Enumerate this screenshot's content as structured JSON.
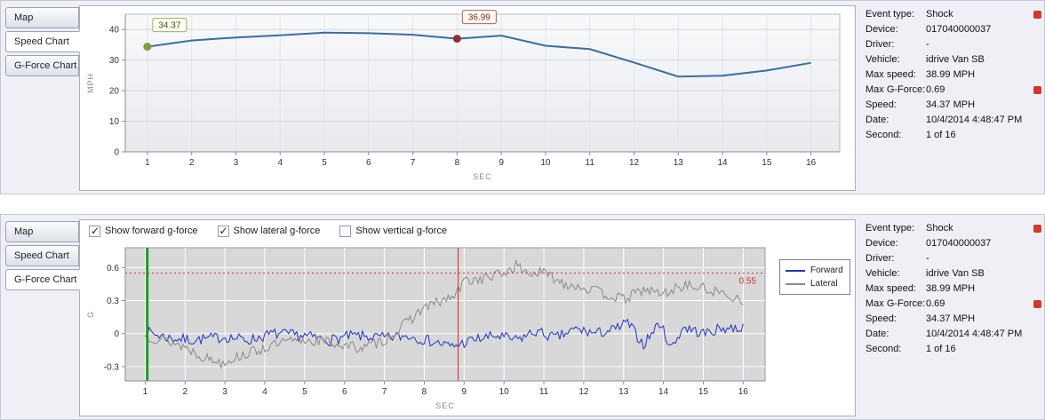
{
  "tabs": {
    "map": "Map",
    "speed": "Speed Chart",
    "gforce": "G-Force Chart"
  },
  "info": {
    "rows": [
      {
        "label": "Event type:",
        "value": "Shock"
      },
      {
        "label": "Device:",
        "value": "017040000037"
      },
      {
        "label": "Driver:",
        "value": "-"
      },
      {
        "label": "Vehicle:",
        "value": "idrive Van SB"
      },
      {
        "label": "Max speed:",
        "value": "38.99 MPH"
      },
      {
        "label": "Max G-Force:",
        "value": "0.69"
      },
      {
        "label": "Speed:",
        "value": "34.37 MPH"
      },
      {
        "label": "Date:",
        "value": "10/4/2014 4:48:47 PM"
      },
      {
        "label": "Second:",
        "value": "1 of 16"
      }
    ]
  },
  "gforce_controls": [
    {
      "label": "Show forward g-force",
      "checked": true
    },
    {
      "label": "Show lateral g-force",
      "checked": true
    },
    {
      "label": "Show vertical g-force",
      "checked": false
    }
  ],
  "chart_data": [
    {
      "type": "line",
      "title": "Speed Chart",
      "xlabel": "SEC",
      "ylabel": "MPH",
      "xlim": [
        0.5,
        16.65
      ],
      "ylim": [
        0,
        45
      ],
      "xticks": [
        1,
        2,
        3,
        4,
        5,
        6,
        7,
        8,
        9,
        10,
        11,
        12,
        13,
        14,
        15,
        16
      ],
      "yticks": [
        0,
        10,
        20,
        30,
        40
      ],
      "series": [
        {
          "name": "Speed",
          "color": "#3a6da6",
          "width": 2,
          "x": [
            1,
            2,
            3,
            4,
            5,
            6,
            7,
            8,
            9,
            10,
            11,
            12,
            13,
            14,
            15,
            16
          ],
          "values": [
            34.37,
            36.4,
            37.4,
            38.1,
            38.99,
            38.8,
            38.3,
            36.99,
            38.0,
            34.7,
            33.6,
            29.2,
            24.6,
            24.9,
            26.6,
            29.1
          ]
        }
      ],
      "annotations": [
        {
          "x": 1,
          "y": 34.37,
          "label": "34.37",
          "dot": "#7e9b3d",
          "box": "#a3ad6a",
          "text": "#4b5320"
        },
        {
          "x": 8,
          "y": 36.99,
          "label": "36.99",
          "dot": "#922f2f",
          "box": "#b06060",
          "text": "#8b2525"
        }
      ]
    },
    {
      "type": "line",
      "title": "G-Force Chart",
      "xlabel": "SEC",
      "ylabel": "G",
      "xlim": [
        0.5,
        16.55
      ],
      "ylim": [
        -0.43,
        0.78
      ],
      "xticks": [
        1,
        2,
        3,
        4,
        5,
        6,
        7,
        8,
        9,
        10,
        11,
        12,
        13,
        14,
        15,
        16
      ],
      "yticks": [
        -0.3,
        0,
        0.3,
        0.6
      ],
      "threshold": {
        "y": 0.55,
        "label": "0.55",
        "color": "#cf3333"
      },
      "event_lines": [
        {
          "x": 1.05,
          "color": "#1f9b26",
          "width": 3
        },
        {
          "x": 8.85,
          "color": "#cf2b20",
          "width": 1
        }
      ],
      "legend": {
        "entries": [
          {
            "label": "Forward",
            "color": "#2333c0"
          },
          {
            "label": "Lateral",
            "color": "#8a8a8a"
          }
        ]
      },
      "series": [
        {
          "name": "Forward",
          "color": "#2333c0",
          "width": 1,
          "noise": 0.05,
          "seed": 7,
          "keypoints": [
            [
              1,
              0.02
            ],
            [
              1.6,
              -0.04
            ],
            [
              2.2,
              -0.06
            ],
            [
              3,
              -0.03
            ],
            [
              3.6,
              -0.06
            ],
            [
              4.2,
              0
            ],
            [
              5,
              -0.02
            ],
            [
              5.6,
              -0.06
            ],
            [
              6.2,
              -0.02
            ],
            [
              7,
              -0.04
            ],
            [
              7.6,
              -0.02
            ],
            [
              8.3,
              -0.08
            ],
            [
              8.7,
              -0.12
            ],
            [
              9.2,
              -0.06
            ],
            [
              9.8,
              -0.02
            ],
            [
              10.3,
              -0.06
            ],
            [
              10.8,
              0.02
            ],
            [
              11.3,
              -0.04
            ],
            [
              11.8,
              0.04
            ],
            [
              12.3,
              0
            ],
            [
              12.8,
              0.04
            ],
            [
              13.1,
              0.1
            ],
            [
              13.5,
              -0.1
            ],
            [
              13.9,
              0.1
            ],
            [
              14.2,
              -0.13
            ],
            [
              14.5,
              0.06
            ],
            [
              15,
              0
            ],
            [
              15.5,
              0.05
            ],
            [
              16,
              0.05
            ]
          ]
        },
        {
          "name": "Lateral",
          "color": "#8a8a8a",
          "width": 1,
          "noise": 0.05,
          "seed": 13,
          "keypoints": [
            [
              1,
              -0.02
            ],
            [
              1.5,
              -0.06
            ],
            [
              2,
              -0.12
            ],
            [
              2.5,
              -0.22
            ],
            [
              2.9,
              -0.26
            ],
            [
              3.4,
              -0.2
            ],
            [
              4,
              -0.13
            ],
            [
              4.5,
              -0.08
            ],
            [
              5,
              -0.06
            ],
            [
              5.5,
              -0.07
            ],
            [
              6,
              -0.11
            ],
            [
              6.5,
              -0.13
            ],
            [
              7,
              -0.06
            ],
            [
              7.5,
              0.08
            ],
            [
              8,
              0.24
            ],
            [
              8.5,
              0.3
            ],
            [
              8.8,
              0.35
            ],
            [
              9,
              0.48
            ],
            [
              9.5,
              0.5
            ],
            [
              10,
              0.55
            ],
            [
              10.3,
              0.62
            ],
            [
              10.6,
              0.55
            ],
            [
              11,
              0.55
            ],
            [
              11.5,
              0.46
            ],
            [
              12,
              0.42
            ],
            [
              12.5,
              0.36
            ],
            [
              13,
              0.31
            ],
            [
              13.5,
              0.4
            ],
            [
              14,
              0.36
            ],
            [
              14.5,
              0.44
            ],
            [
              15,
              0.41
            ],
            [
              15.5,
              0.36
            ],
            [
              16,
              0.31
            ]
          ]
        }
      ]
    }
  ]
}
